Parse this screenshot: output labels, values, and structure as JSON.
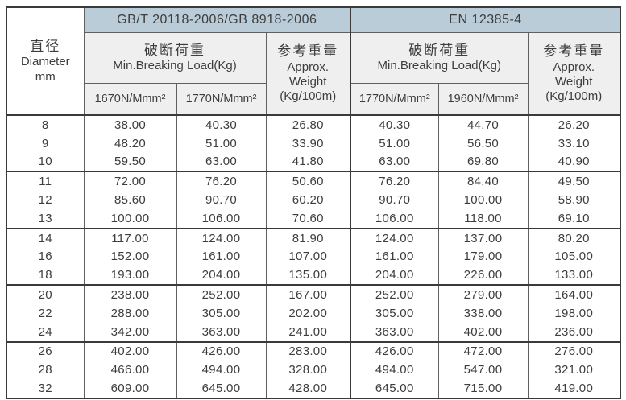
{
  "table": {
    "diameter": {
      "zh": "直径",
      "en": "Diameter",
      "unit": "mm"
    },
    "sections": [
      {
        "standard": "GB/T 20118-2006/GB 8918-2006",
        "breaking_load_zh": "破断荷重",
        "breaking_load_en": "Min.Breaking Load(Kg)",
        "grades": [
          "1670N/Mmm²",
          "1770N/Mmm²"
        ],
        "weight_zh": "参考重量",
        "weight_en": [
          "Approx.",
          "Weight",
          "(Kg/100m)"
        ]
      },
      {
        "standard": "EN 12385-4",
        "breaking_load_zh": "破断荷重",
        "breaking_load_en": "Min.Breaking Load(Kg)",
        "grades": [
          "1770N/Mmm²",
          "1960N/Mmm²"
        ],
        "weight_zh": "参考重量",
        "weight_en": [
          "Approx.",
          "Weight",
          "(Kg/100m)"
        ]
      }
    ],
    "rows": [
      {
        "diameter": "8",
        "values": [
          "38.00",
          "40.30",
          "26.80",
          "40.30",
          "44.70",
          "26.20"
        ]
      },
      {
        "diameter": "9",
        "values": [
          "48.20",
          "51.00",
          "33.90",
          "51.00",
          "56.50",
          "33.10"
        ]
      },
      {
        "diameter": "10",
        "values": [
          "59.50",
          "63.00",
          "41.80",
          "63.00",
          "69.80",
          "40.90"
        ]
      },
      {
        "diameter": "11",
        "values": [
          "72.00",
          "76.20",
          "50.60",
          "76.20",
          "84.40",
          "49.50"
        ]
      },
      {
        "diameter": "12",
        "values": [
          "85.60",
          "90.70",
          "60.20",
          "90.70",
          "100.00",
          "58.90"
        ]
      },
      {
        "diameter": "13",
        "values": [
          "100.00",
          "106.00",
          "70.60",
          "106.00",
          "118.00",
          "69.10"
        ]
      },
      {
        "diameter": "14",
        "values": [
          "117.00",
          "124.00",
          "81.90",
          "124.00",
          "137.00",
          "80.20"
        ]
      },
      {
        "diameter": "16",
        "values": [
          "152.00",
          "161.00",
          "107.00",
          "161.00",
          "179.00",
          "105.00"
        ]
      },
      {
        "diameter": "18",
        "values": [
          "193.00",
          "204.00",
          "135.00",
          "204.00",
          "226.00",
          "133.00"
        ]
      },
      {
        "diameter": "20",
        "values": [
          "238.00",
          "252.00",
          "167.00",
          "252.00",
          "279.00",
          "164.00"
        ]
      },
      {
        "diameter": "22",
        "values": [
          "288.00",
          "305.00",
          "202.00",
          "305.00",
          "338.00",
          "198.00"
        ]
      },
      {
        "diameter": "24",
        "values": [
          "342.00",
          "363.00",
          "241.00",
          "363.00",
          "402.00",
          "236.00"
        ]
      },
      {
        "diameter": "26",
        "values": [
          "402.00",
          "426.00",
          "283.00",
          "426.00",
          "472.00",
          "276.00"
        ]
      },
      {
        "diameter": "28",
        "values": [
          "466.00",
          "494.00",
          "328.00",
          "494.00",
          "547.00",
          "321.00"
        ]
      },
      {
        "diameter": "32",
        "values": [
          "609.00",
          "645.00",
          "428.00",
          "645.00",
          "715.00",
          "419.00"
        ]
      }
    ],
    "rows_per_group": 3
  },
  "colors": {
    "header_blue": "#b9ccd8",
    "header_gray": "#efefef",
    "border_dark": "#3a3a3a",
    "border_light": "#606060",
    "text": "#3d3d3d",
    "background": "#ffffff"
  }
}
